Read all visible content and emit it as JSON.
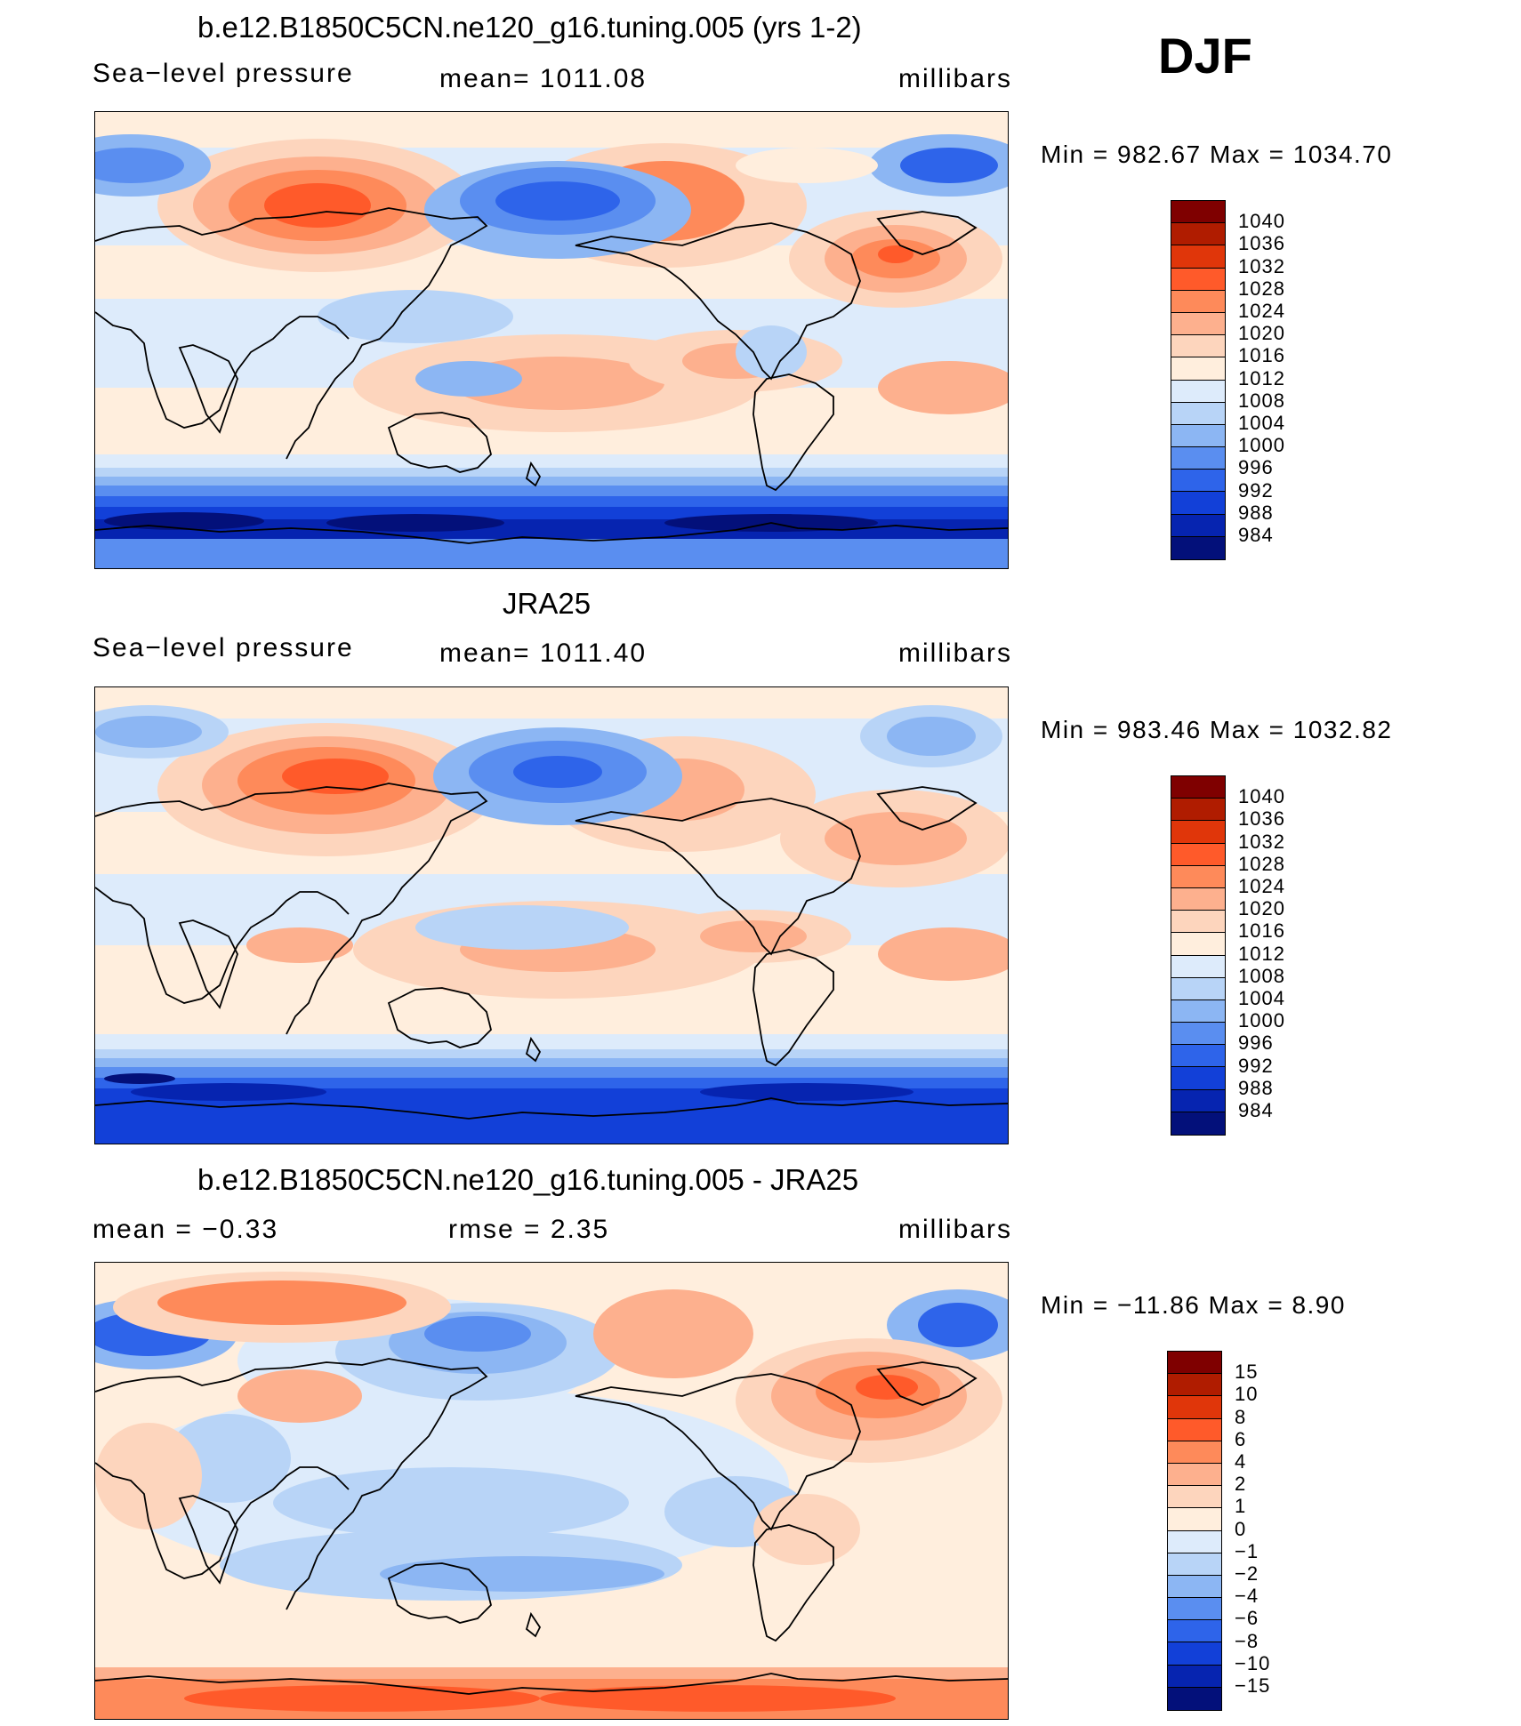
{
  "season": "DJF",
  "panels": [
    {
      "id": "model",
      "title": "b.e12.B1850C5CN.ne120_g16.tuning.005 (yrs 1-2)",
      "left_label": "Sea−level pressure",
      "center_label": "mean=  1011.08",
      "units": "millibars",
      "minmax": "Min  =  982.67  Max  =  1034.70",
      "colorbar_labels": [
        "1040",
        "1036",
        "1032",
        "1028",
        "1024",
        "1020",
        "1016",
        "1012",
        "1008",
        "1004",
        "1000",
        "996",
        "992",
        "988",
        "984"
      ]
    },
    {
      "id": "obs",
      "title": "JRA25",
      "left_label": "Sea−level pressure",
      "center_label": "mean=  1011.40",
      "units": "millibars",
      "minmax": "Min  =  983.46  Max  =  1032.82",
      "colorbar_labels": [
        "1040",
        "1036",
        "1032",
        "1028",
        "1024",
        "1020",
        "1016",
        "1012",
        "1008",
        "1004",
        "1000",
        "996",
        "992",
        "988",
        "984"
      ]
    },
    {
      "id": "diff",
      "title": "b.e12.B1850C5CN.ne120_g16.tuning.005 - JRA25",
      "left_label": "mean  =    −0.33",
      "center_label": "rmse  =     2.35",
      "units": "millibars",
      "minmax": "Min  =  −11.86  Max  =      8.90",
      "colorbar_labels": [
        "15",
        "10",
        "8",
        "6",
        "4",
        "2",
        "1",
        "0",
        "−1",
        "−2",
        "−4",
        "−6",
        "−8",
        "−10",
        "−15"
      ]
    }
  ],
  "colors": {
    "scale": [
      "#7f0000",
      "#b01c00",
      "#e0360a",
      "#ff5a2a",
      "#fe8a5a",
      "#fdb08e",
      "#fdd5bd",
      "#ffeedd",
      "#ddebfb",
      "#b8d4f7",
      "#8cb6f3",
      "#5a8ef0",
      "#2e64ea",
      "#1240d8",
      "#0624b0",
      "#03107a"
    ]
  }
}
